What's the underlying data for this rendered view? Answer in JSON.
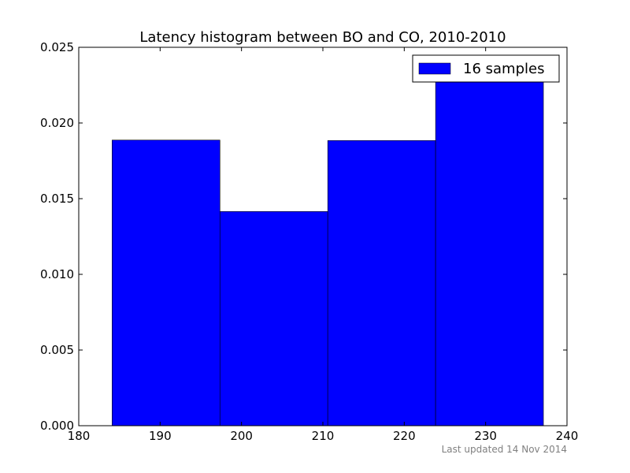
{
  "chart_data": {
    "type": "bar",
    "title": "Latency histogram between BO and CO, 2010-2010",
    "xlabel": "",
    "ylabel": "",
    "xlim": [
      180,
      240
    ],
    "ylim": [
      0,
      0.025
    ],
    "xticks": [
      180,
      190,
      200,
      210,
      220,
      230,
      240
    ],
    "yticks": [
      0.0,
      0.005,
      0.01,
      0.015,
      0.02,
      0.025
    ],
    "xtick_labels": [
      "180",
      "190",
      "200",
      "210",
      "220",
      "230",
      "240"
    ],
    "ytick_labels": [
      "0.000",
      "0.005",
      "0.010",
      "0.015",
      "0.020",
      "0.025"
    ],
    "bins": [
      {
        "x0": 184.1,
        "x1": 197.35,
        "value": 0.01887
      },
      {
        "x0": 197.35,
        "x1": 210.6,
        "value": 0.01415
      },
      {
        "x0": 210.6,
        "x1": 223.85,
        "value": 0.01884
      },
      {
        "x0": 223.85,
        "x1": 237.1,
        "value": 0.0227
      }
    ],
    "series": [
      {
        "name": "16 samples",
        "color": "#0000ff"
      }
    ],
    "legend_position": "top-right",
    "grid": false
  },
  "footnote": "Last updated 14 Nov 2014"
}
